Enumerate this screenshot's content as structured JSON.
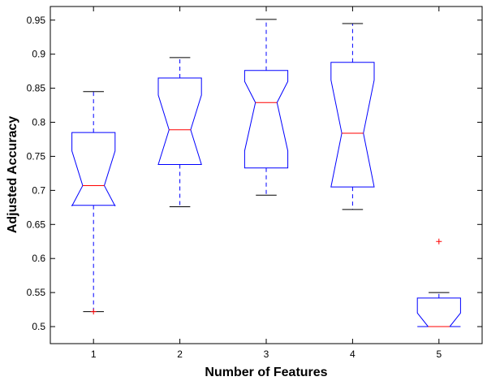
{
  "chart_data": {
    "type": "boxplot",
    "notched": true,
    "title": "",
    "xlabel": "Number of Features",
    "ylabel": "Adjusted Accuracy",
    "xlim": [
      0.5,
      5.5
    ],
    "ylim": [
      0.475,
      0.97
    ],
    "grid": false,
    "categories": [
      "1",
      "2",
      "3",
      "4",
      "5"
    ],
    "y_ticks": [
      "0.5",
      "0.55",
      "0.6",
      "0.65",
      "0.7",
      "0.75",
      "0.8",
      "0.85",
      "0.9",
      "0.95"
    ],
    "boxes": [
      {
        "category": "1",
        "whisker_low": 0.522,
        "q1": 0.678,
        "notch_low": 0.677,
        "median": 0.707,
        "notch_high": 0.758,
        "q3": 0.785,
        "whisker_high": 0.845,
        "outliers": [
          0.522
        ]
      },
      {
        "category": "2",
        "whisker_low": 0.676,
        "q1": 0.738,
        "notch_low": 0.738,
        "median": 0.789,
        "notch_high": 0.84,
        "q3": 0.865,
        "whisker_high": 0.895,
        "outliers": []
      },
      {
        "category": "3",
        "whisker_low": 0.693,
        "q1": 0.733,
        "notch_low": 0.758,
        "median": 0.829,
        "notch_high": 0.86,
        "q3": 0.876,
        "whisker_high": 0.951,
        "outliers": []
      },
      {
        "category": "4",
        "whisker_low": 0.672,
        "q1": 0.705,
        "notch_low": 0.705,
        "median": 0.784,
        "notch_high": 0.862,
        "q3": 0.888,
        "whisker_high": 0.945,
        "outliers": []
      },
      {
        "category": "5",
        "whisker_low": 0.5,
        "q1": 0.5,
        "notch_low": 0.5,
        "median": 0.5,
        "notch_high": 0.52,
        "q3": 0.542,
        "whisker_high": 0.55,
        "outliers": [
          0.625
        ]
      }
    ],
    "colors": {
      "box": "#0000ff",
      "median": "#ff0000",
      "outlier": "#ff0000",
      "axis": "#000000"
    }
  }
}
